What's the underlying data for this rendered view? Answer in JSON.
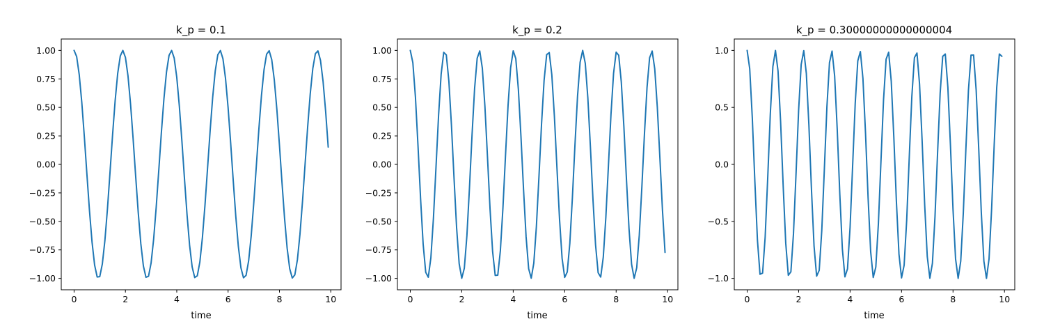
{
  "chart_data": [
    {
      "type": "line",
      "title": "k_p = 0.1",
      "xlabel": "time",
      "ylabel": "",
      "xlim": [
        -0.5,
        10.4
      ],
      "ylim": [
        -1.1,
        1.1
      ],
      "xticks": [
        0,
        2,
        4,
        6,
        8,
        10
      ],
      "xtick_labels": [
        "0",
        "2",
        "4",
        "6",
        "8",
        "10"
      ],
      "yticks": [
        1.0,
        0.75,
        0.5,
        0.25,
        0.0,
        -0.25,
        -0.5,
        -0.75,
        -1.0
      ],
      "ytick_labels": [
        "1.00",
        "0.75",
        "0.50",
        "0.25",
        "0.00",
        "−0.25",
        "−0.50",
        "−0.75",
        "−1.00"
      ],
      "grid": false,
      "series": [
        {
          "color": "#1f77b4",
          "curve": "cosine",
          "angular_frequency": 3.3166,
          "x_start": 0,
          "x_end": 9.9,
          "x_step": 0.1
        }
      ]
    },
    {
      "type": "line",
      "title": "k_p = 0.2",
      "xlabel": "time",
      "ylabel": "",
      "xlim": [
        -0.5,
        10.4
      ],
      "ylim": [
        -1.1,
        1.1
      ],
      "xticks": [
        0,
        2,
        4,
        6,
        8,
        10
      ],
      "xtick_labels": [
        "0",
        "2",
        "4",
        "6",
        "8",
        "10"
      ],
      "yticks": [
        1.0,
        0.75,
        0.5,
        0.25,
        0.0,
        -0.25,
        -0.5,
        -0.75,
        -1.0
      ],
      "ytick_labels": [
        "1.00",
        "0.75",
        "0.50",
        "0.25",
        "0.00",
        "−0.25",
        "−0.50",
        "−0.75",
        "−1.00"
      ],
      "grid": false,
      "series": [
        {
          "color": "#1f77b4",
          "curve": "cosine",
          "angular_frequency": 4.6904,
          "x_start": 0,
          "x_end": 9.9,
          "x_step": 0.1
        }
      ]
    },
    {
      "type": "line",
      "title": "k_p = 0.30000000000000004",
      "xlabel": "time",
      "ylabel": "",
      "xlim": [
        -0.5,
        10.4
      ],
      "ylim": [
        -1.1,
        1.1
      ],
      "xticks": [
        0,
        2,
        4,
        6,
        8,
        10
      ],
      "xtick_labels": [
        "0",
        "2",
        "4",
        "6",
        "8",
        "10"
      ],
      "yticks": [
        1.0,
        0.5,
        0.0,
        -0.5,
        -1.0
      ],
      "ytick_labels": [
        "1.0",
        "0.5",
        "0.0",
        "−0.5",
        "−1.0"
      ],
      "grid": false,
      "series": [
        {
          "color": "#1f77b4",
          "curve": "cosine",
          "angular_frequency": 5.7446,
          "x_start": 0,
          "x_end": 9.9,
          "x_step": 0.1
        }
      ]
    }
  ]
}
